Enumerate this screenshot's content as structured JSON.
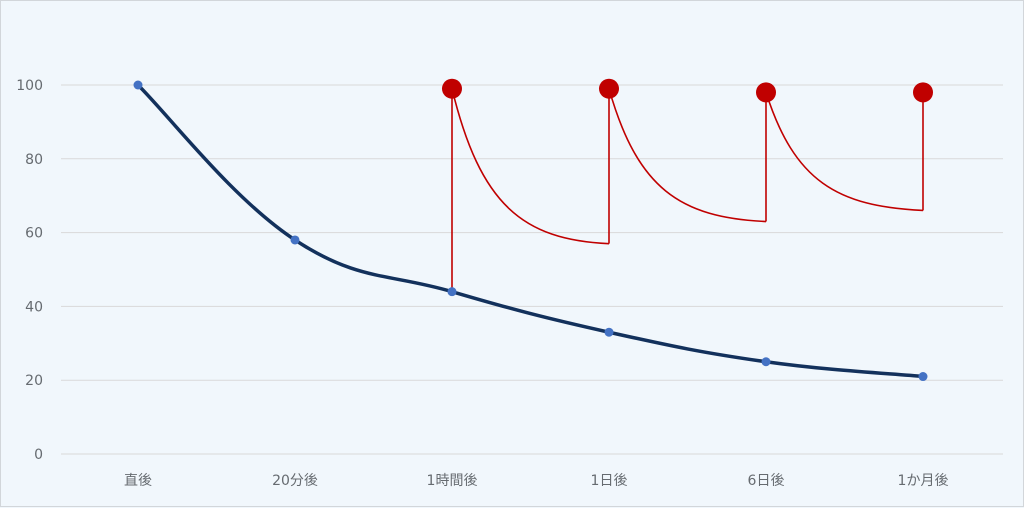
{
  "chart_data": {
    "type": "line",
    "title": "",
    "xlabel": "",
    "ylabel": "",
    "categories": [
      "直後",
      "20分後",
      "1時間後",
      "1日後",
      "6日後",
      "1か月後"
    ],
    "ylim": [
      0,
      100
    ],
    "yticks": [
      "0",
      "20",
      "40",
      "60",
      "80",
      "100"
    ],
    "grid": true,
    "legend": "none",
    "series": [
      {
        "values": [
          100,
          58,
          44,
          33,
          25,
          21
        ],
        "color": "#13315c",
        "marker_color": "#4472c4"
      }
    ],
    "review_curves": {
      "color": "#c00000",
      "segments": [
        {
          "from_category": "1時間後",
          "to_category": "1日後",
          "jump_from": 44,
          "peak": 99,
          "end": 57
        },
        {
          "from_category": "1日後",
          "to_category": "6日後",
          "jump_from": 57,
          "peak": 99,
          "end": 63
        },
        {
          "from_category": "6日後",
          "to_category": "1か月後",
          "jump_from": 63,
          "peak": 98,
          "end": 66
        }
      ],
      "final_marker": {
        "category": "1か月後",
        "jump_from": 66,
        "peak": 98
      }
    }
  }
}
